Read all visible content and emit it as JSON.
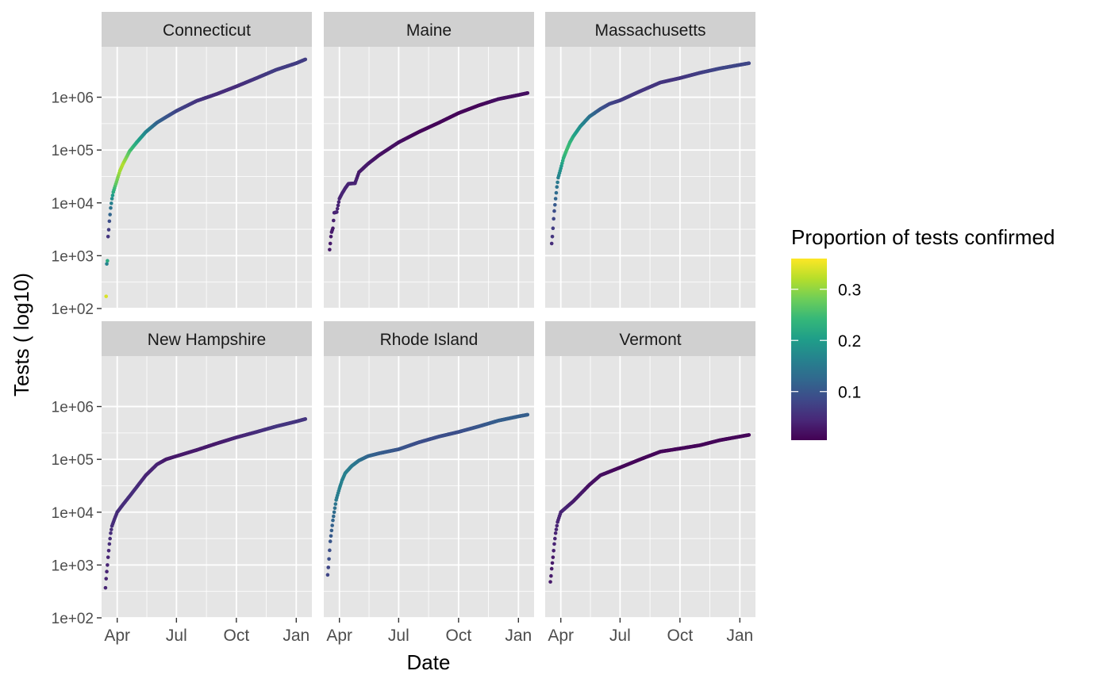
{
  "chart_data": {
    "type": "scatter",
    "xlabel": "Date",
    "ylabel": "Tests ( log10)",
    "y_scale": "log10",
    "y_ticks": [
      "1e+02",
      "1e+03",
      "1e+04",
      "1e+05",
      "1e+06"
    ],
    "y_tick_values": [
      100,
      1000,
      10000,
      100000,
      1000000
    ],
    "x_ticks": [
      "Apr",
      "Jul",
      "Oct",
      "Jan"
    ],
    "x_tick_dates": [
      "2020-04-01",
      "2020-07-01",
      "2020-10-01",
      "2021-01-01"
    ],
    "xlim": [
      "2020-03-08",
      "2021-01-25"
    ],
    "ylim": [
      100,
      9000000
    ],
    "grid": true,
    "layout": {
      "rows": 2,
      "cols": 3
    },
    "legend": {
      "title": "Proportion of tests confirmed",
      "position": "right",
      "ticks": [
        "0.1",
        "0.2",
        "0.3"
      ],
      "tick_values": [
        0.1,
        0.2,
        0.3
      ],
      "range": [
        0.005,
        0.36
      ],
      "colors": [
        "#440154",
        "#482878",
        "#3e4989",
        "#31688e",
        "#26828e",
        "#1f9e89",
        "#35b779",
        "#6ece58",
        "#b5de2b",
        "#fde725"
      ]
    },
    "colors": {
      "panel_bg": "#e5e5e5",
      "strip_bg": "#d0d0d0",
      "grid": "#ffffff",
      "axis_text": "#4d4d4d"
    },
    "panels": [
      {
        "title": "Connecticut",
        "points": [
          {
            "x": "2020-03-15",
            "y": 170,
            "c": 0.34
          },
          {
            "x": "2020-03-16",
            "y": 700,
            "c": 0.16
          },
          {
            "x": "2020-03-17",
            "y": 800,
            "c": 0.22
          },
          {
            "x": "2020-03-18",
            "y": 2300,
            "c": 0.06
          },
          {
            "x": "2020-03-19",
            "y": 3100,
            "c": 0.07
          },
          {
            "x": "2020-03-20",
            "y": 4500,
            "c": 0.09
          },
          {
            "x": "2020-03-21",
            "y": 6000,
            "c": 0.12
          },
          {
            "x": "2020-03-22",
            "y": 8000,
            "c": 0.14
          },
          {
            "x": "2020-03-24",
            "y": 12000,
            "c": 0.18
          },
          {
            "x": "2020-03-26",
            "y": 16000,
            "c": 0.22
          },
          {
            "x": "2020-03-30",
            "y": 23000,
            "c": 0.27
          },
          {
            "x": "2020-04-05",
            "y": 40000,
            "c": 0.31
          },
          {
            "x": "2020-04-10",
            "y": 55000,
            "c": 0.32
          },
          {
            "x": "2020-04-15",
            "y": 72000,
            "c": 0.29
          },
          {
            "x": "2020-04-20",
            "y": 95000,
            "c": 0.26
          },
          {
            "x": "2020-05-01",
            "y": 140000,
            "c": 0.22
          },
          {
            "x": "2020-05-15",
            "y": 220000,
            "c": 0.17
          },
          {
            "x": "2020-06-01",
            "y": 330000,
            "c": 0.12
          },
          {
            "x": "2020-06-15",
            "y": 420000,
            "c": 0.1
          },
          {
            "x": "2020-07-01",
            "y": 550000,
            "c": 0.08
          },
          {
            "x": "2020-08-01",
            "y": 850000,
            "c": 0.06
          },
          {
            "x": "2020-09-01",
            "y": 1150000,
            "c": 0.05
          },
          {
            "x": "2020-10-01",
            "y": 1600000,
            "c": 0.05
          },
          {
            "x": "2020-11-01",
            "y": 2300000,
            "c": 0.06
          },
          {
            "x": "2020-12-01",
            "y": 3300000,
            "c": 0.07
          },
          {
            "x": "2021-01-01",
            "y": 4400000,
            "c": 0.07
          },
          {
            "x": "2021-01-15",
            "y": 5200000,
            "c": 0.07
          }
        ]
      },
      {
        "title": "Maine",
        "points": [
          {
            "x": "2020-03-17",
            "y": 1300,
            "c": 0.03
          },
          {
            "x": "2020-03-18",
            "y": 1700,
            "c": 0.03
          },
          {
            "x": "2020-03-19",
            "y": 2300,
            "c": 0.03
          },
          {
            "x": "2020-03-20",
            "y": 2800,
            "c": 0.03
          },
          {
            "x": "2020-03-22",
            "y": 3300,
            "c": 0.03
          },
          {
            "x": "2020-03-24",
            "y": 6500,
            "c": 0.04
          },
          {
            "x": "2020-03-28",
            "y": 6700,
            "c": 0.04
          },
          {
            "x": "2020-04-01",
            "y": 12000,
            "c": 0.04
          },
          {
            "x": "2020-04-05",
            "y": 15000,
            "c": 0.04
          },
          {
            "x": "2020-04-10",
            "y": 19000,
            "c": 0.04
          },
          {
            "x": "2020-04-15",
            "y": 23000,
            "c": 0.04
          },
          {
            "x": "2020-04-25",
            "y": 23500,
            "c": 0.04
          },
          {
            "x": "2020-05-01",
            "y": 38000,
            "c": 0.03
          },
          {
            "x": "2020-05-15",
            "y": 55000,
            "c": 0.03
          },
          {
            "x": "2020-06-01",
            "y": 80000,
            "c": 0.02
          },
          {
            "x": "2020-07-01",
            "y": 140000,
            "c": 0.02
          },
          {
            "x": "2020-08-01",
            "y": 220000,
            "c": 0.01
          },
          {
            "x": "2020-09-01",
            "y": 330000,
            "c": 0.01
          },
          {
            "x": "2020-10-01",
            "y": 500000,
            "c": 0.01
          },
          {
            "x": "2020-11-01",
            "y": 700000,
            "c": 0.01
          },
          {
            "x": "2020-12-01",
            "y": 920000,
            "c": 0.02
          },
          {
            "x": "2021-01-01",
            "y": 1100000,
            "c": 0.02
          },
          {
            "x": "2021-01-15",
            "y": 1200000,
            "c": 0.02
          }
        ]
      },
      {
        "title": "Massachusetts",
        "points": [
          {
            "x": "2020-03-18",
            "y": 1700,
            "c": 0.05
          },
          {
            "x": "2020-03-19",
            "y": 2300,
            "c": 0.06
          },
          {
            "x": "2020-03-20",
            "y": 3300,
            "c": 0.07
          },
          {
            "x": "2020-03-21",
            "y": 5000,
            "c": 0.08
          },
          {
            "x": "2020-03-22",
            "y": 7000,
            "c": 0.09
          },
          {
            "x": "2020-03-24",
            "y": 12000,
            "c": 0.12
          },
          {
            "x": "2020-03-26",
            "y": 20000,
            "c": 0.14
          },
          {
            "x": "2020-03-28",
            "y": 30000,
            "c": 0.16
          },
          {
            "x": "2020-04-01",
            "y": 45000,
            "c": 0.19
          },
          {
            "x": "2020-04-05",
            "y": 70000,
            "c": 0.23
          },
          {
            "x": "2020-04-10",
            "y": 100000,
            "c": 0.25
          },
          {
            "x": "2020-04-15",
            "y": 140000,
            "c": 0.24
          },
          {
            "x": "2020-04-20",
            "y": 180000,
            "c": 0.22
          },
          {
            "x": "2020-05-01",
            "y": 280000,
            "c": 0.18
          },
          {
            "x": "2020-05-15",
            "y": 430000,
            "c": 0.14
          },
          {
            "x": "2020-06-01",
            "y": 600000,
            "c": 0.1
          },
          {
            "x": "2020-06-15",
            "y": 750000,
            "c": 0.08
          },
          {
            "x": "2020-07-01",
            "y": 870000,
            "c": 0.07
          },
          {
            "x": "2020-08-01",
            "y": 1300000,
            "c": 0.06
          },
          {
            "x": "2020-09-01",
            "y": 1900000,
            "c": 0.06
          },
          {
            "x": "2020-10-01",
            "y": 2300000,
            "c": 0.06
          },
          {
            "x": "2020-11-01",
            "y": 2900000,
            "c": 0.07
          },
          {
            "x": "2020-12-01",
            "y": 3500000,
            "c": 0.08
          },
          {
            "x": "2021-01-01",
            "y": 4100000,
            "c": 0.08
          },
          {
            "x": "2021-01-15",
            "y": 4400000,
            "c": 0.08
          }
        ]
      },
      {
        "title": "New Hampshire",
        "points": [
          {
            "x": "2020-03-14",
            "y": 370,
            "c": 0.04
          },
          {
            "x": "2020-03-15",
            "y": 550,
            "c": 0.04
          },
          {
            "x": "2020-03-16",
            "y": 750,
            "c": 0.04
          },
          {
            "x": "2020-03-17",
            "y": 1000,
            "c": 0.04
          },
          {
            "x": "2020-03-18",
            "y": 1400,
            "c": 0.04
          },
          {
            "x": "2020-03-20",
            "y": 2500,
            "c": 0.05
          },
          {
            "x": "2020-03-22",
            "y": 4000,
            "c": 0.05
          },
          {
            "x": "2020-03-24",
            "y": 5500,
            "c": 0.05
          },
          {
            "x": "2020-03-28",
            "y": 7500,
            "c": 0.05
          },
          {
            "x": "2020-04-01",
            "y": 10000,
            "c": 0.05
          },
          {
            "x": "2020-04-10",
            "y": 14000,
            "c": 0.05
          },
          {
            "x": "2020-04-20",
            "y": 20000,
            "c": 0.05
          },
          {
            "x": "2020-05-01",
            "y": 30000,
            "c": 0.05
          },
          {
            "x": "2020-05-15",
            "y": 50000,
            "c": 0.04
          },
          {
            "x": "2020-06-01",
            "y": 80000,
            "c": 0.04
          },
          {
            "x": "2020-06-15",
            "y": 100000,
            "c": 0.03
          },
          {
            "x": "2020-07-01",
            "y": 115000,
            "c": 0.03
          },
          {
            "x": "2020-08-01",
            "y": 150000,
            "c": 0.03
          },
          {
            "x": "2020-09-01",
            "y": 200000,
            "c": 0.03
          },
          {
            "x": "2020-10-01",
            "y": 260000,
            "c": 0.04
          },
          {
            "x": "2020-11-01",
            "y": 330000,
            "c": 0.05
          },
          {
            "x": "2020-12-01",
            "y": 420000,
            "c": 0.06
          },
          {
            "x": "2021-01-01",
            "y": 520000,
            "c": 0.06
          },
          {
            "x": "2021-01-15",
            "y": 580000,
            "c": 0.06
          }
        ]
      },
      {
        "title": "Rhode Island",
        "points": [
          {
            "x": "2020-03-14",
            "y": 650,
            "c": 0.08
          },
          {
            "x": "2020-03-15",
            "y": 900,
            "c": 0.08
          },
          {
            "x": "2020-03-16",
            "y": 1300,
            "c": 0.09
          },
          {
            "x": "2020-03-17",
            "y": 1900,
            "c": 0.09
          },
          {
            "x": "2020-03-18",
            "y": 2800,
            "c": 0.1
          },
          {
            "x": "2020-03-20",
            "y": 4500,
            "c": 0.11
          },
          {
            "x": "2020-03-22",
            "y": 7000,
            "c": 0.12
          },
          {
            "x": "2020-03-24",
            "y": 10000,
            "c": 0.13
          },
          {
            "x": "2020-03-27",
            "y": 17000,
            "c": 0.15
          },
          {
            "x": "2020-04-01",
            "y": 28000,
            "c": 0.16
          },
          {
            "x": "2020-04-05",
            "y": 40000,
            "c": 0.16
          },
          {
            "x": "2020-04-10",
            "y": 55000,
            "c": 0.16
          },
          {
            "x": "2020-04-20",
            "y": 75000,
            "c": 0.15
          },
          {
            "x": "2020-05-01",
            "y": 95000,
            "c": 0.14
          },
          {
            "x": "2020-05-15",
            "y": 115000,
            "c": 0.12
          },
          {
            "x": "2020-06-01",
            "y": 130000,
            "c": 0.11
          },
          {
            "x": "2020-07-01",
            "y": 155000,
            "c": 0.1
          },
          {
            "x": "2020-08-01",
            "y": 210000,
            "c": 0.09
          },
          {
            "x": "2020-09-01",
            "y": 270000,
            "c": 0.09
          },
          {
            "x": "2020-10-01",
            "y": 330000,
            "c": 0.09
          },
          {
            "x": "2020-11-01",
            "y": 420000,
            "c": 0.1
          },
          {
            "x": "2020-12-01",
            "y": 540000,
            "c": 0.11
          },
          {
            "x": "2021-01-01",
            "y": 650000,
            "c": 0.11
          },
          {
            "x": "2021-01-15",
            "y": 700000,
            "c": 0.11
          }
        ]
      },
      {
        "title": "Vermont",
        "points": [
          {
            "x": "2020-03-16",
            "y": 480,
            "c": 0.03
          },
          {
            "x": "2020-03-17",
            "y": 620,
            "c": 0.03
          },
          {
            "x": "2020-03-18",
            "y": 850,
            "c": 0.03
          },
          {
            "x": "2020-03-20",
            "y": 1400,
            "c": 0.03
          },
          {
            "x": "2020-03-22",
            "y": 2500,
            "c": 0.04
          },
          {
            "x": "2020-03-24",
            "y": 4000,
            "c": 0.04
          },
          {
            "x": "2020-03-27",
            "y": 6500,
            "c": 0.04
          },
          {
            "x": "2020-04-01",
            "y": 10000,
            "c": 0.04
          },
          {
            "x": "2020-04-10",
            "y": 12500,
            "c": 0.04
          },
          {
            "x": "2020-04-20",
            "y": 16000,
            "c": 0.03
          },
          {
            "x": "2020-05-01",
            "y": 22000,
            "c": 0.03
          },
          {
            "x": "2020-05-15",
            "y": 33000,
            "c": 0.02
          },
          {
            "x": "2020-06-01",
            "y": 50000,
            "c": 0.02
          },
          {
            "x": "2020-07-01",
            "y": 70000,
            "c": 0.01
          },
          {
            "x": "2020-08-01",
            "y": 100000,
            "c": 0.01
          },
          {
            "x": "2020-09-01",
            "y": 140000,
            "c": 0.01
          },
          {
            "x": "2020-10-01",
            "y": 160000,
            "c": 0.01
          },
          {
            "x": "2020-11-01",
            "y": 185000,
            "c": 0.01
          },
          {
            "x": "2020-12-01",
            "y": 230000,
            "c": 0.01
          },
          {
            "x": "2021-01-01",
            "y": 270000,
            "c": 0.01
          },
          {
            "x": "2021-01-15",
            "y": 290000,
            "c": 0.01
          }
        ]
      }
    ]
  }
}
